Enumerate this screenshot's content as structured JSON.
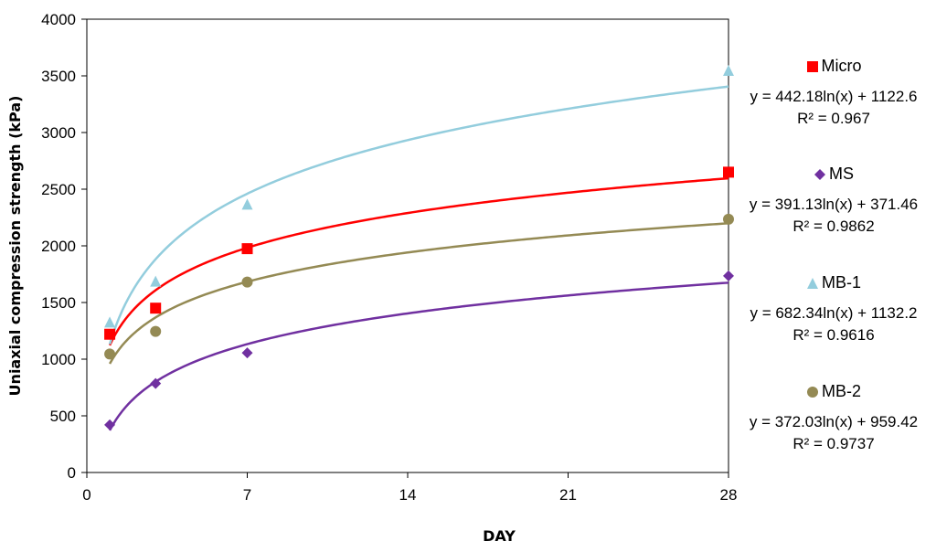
{
  "chart_data": {
    "type": "scatter",
    "xlabel": "DAY",
    "ylabel": "Uniaxial compression strength (kPa)",
    "xlim": [
      0,
      28
    ],
    "ylim": [
      0,
      4000
    ],
    "xticks": [
      0,
      7,
      14,
      21,
      28
    ],
    "yticks": [
      0,
      500,
      1000,
      1500,
      2000,
      2500,
      3000,
      3500,
      4000
    ],
    "grid": false,
    "legend_position": "right",
    "series": [
      {
        "name": "Micro",
        "color": "#ff0000",
        "marker": "square",
        "x": [
          1,
          3,
          7,
          28
        ],
        "y": [
          1220,
          1450,
          1975,
          2650
        ],
        "trendline": {
          "type": "log",
          "a": 442.18,
          "b": 1122.6
        },
        "equation": "y = 442.18ln(x) + 1122.6",
        "r2": "R² = 0.967"
      },
      {
        "name": "MS",
        "color": "#7030a0",
        "marker": "diamond",
        "x": [
          1,
          3,
          7,
          28
        ],
        "y": [
          420,
          785,
          1055,
          1735
        ],
        "trendline": {
          "type": "log",
          "a": 391.13,
          "b": 371.46
        },
        "equation": "y = 391.13ln(x) + 371.46",
        "r2": "R² = 0.9862"
      },
      {
        "name": "MB-1",
        "color": "#93cddd",
        "marker": "triangle",
        "x": [
          1,
          3,
          7,
          28
        ],
        "y": [
          1320,
          1680,
          2360,
          3540
        ],
        "trendline": {
          "type": "log",
          "a": 682.34,
          "b": 1132.2
        },
        "equation": "y = 682.34ln(x) + 1132.2",
        "r2": "R² = 0.9616"
      },
      {
        "name": "MB-2",
        "color": "#948a54",
        "marker": "circle",
        "x": [
          1,
          3,
          7,
          28
        ],
        "y": [
          1045,
          1245,
          1680,
          2235
        ],
        "trendline": {
          "type": "log",
          "a": 372.03,
          "b": 959.42
        },
        "equation": "y = 372.03ln(x) + 959.42",
        "r2": "R² = 0.9737"
      }
    ]
  }
}
